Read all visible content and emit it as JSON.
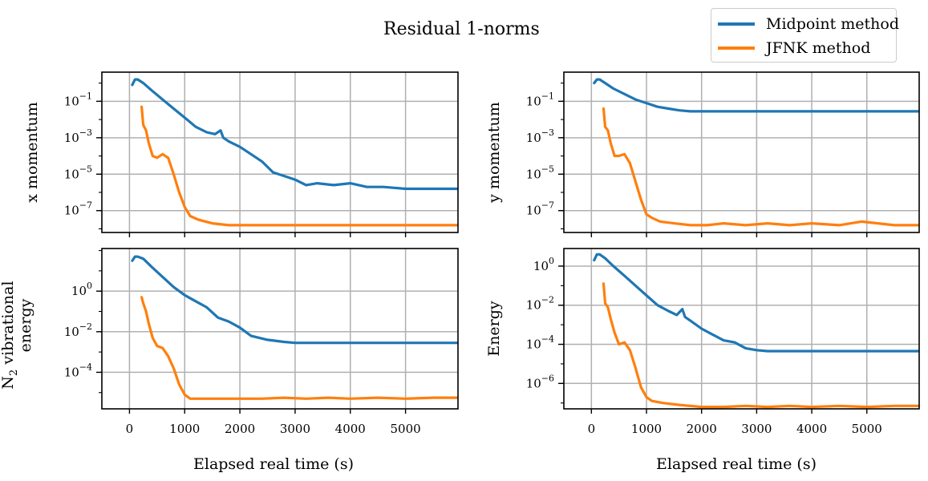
{
  "suptitle": "Residual 1-norms",
  "legend": [
    {
      "label": "Midpoint method",
      "color": "#1f77b4"
    },
    {
      "label": "JFNK method",
      "color": "#ff7f0e"
    }
  ],
  "xlabel": "Elapsed real time (s)",
  "chart_data": [
    {
      "type": "line",
      "panel": "top-left",
      "ylabel": "x momentum",
      "xlim": [
        -500,
        5950
      ],
      "ylim_log10": [
        -8.2,
        0.6
      ],
      "yscale": "log",
      "xticks": [
        0,
        1000,
        2000,
        3000,
        4000,
        5000
      ],
      "xtick_labels_visible": false,
      "yticks_exp": [
        -7,
        -5,
        -3,
        -1
      ],
      "grid": true,
      "series": [
        {
          "name": "Midpoint method",
          "color": "#1f77b4",
          "x": [
            50,
            100,
            150,
            250,
            400,
            600,
            800,
            1000,
            1200,
            1400,
            1550,
            1650,
            1700,
            1800,
            2000,
            2200,
            2400,
            2600,
            2800,
            3000,
            3200,
            3400,
            3700,
            4000,
            4300,
            4600,
            5000,
            5400,
            5950
          ],
          "y_log10": [
            -0.1,
            0.2,
            0.2,
            0.0,
            -0.4,
            -0.9,
            -1.4,
            -1.9,
            -2.4,
            -2.7,
            -2.8,
            -2.6,
            -3.0,
            -3.2,
            -3.5,
            -3.9,
            -4.3,
            -4.9,
            -5.1,
            -5.3,
            -5.6,
            -5.5,
            -5.6,
            -5.5,
            -5.7,
            -5.7,
            -5.8,
            -5.8,
            -5.8
          ]
        },
        {
          "name": "JFNK method",
          "color": "#ff7f0e",
          "x": [
            220,
            250,
            300,
            350,
            420,
            500,
            600,
            700,
            800,
            900,
            1000,
            1100,
            1250,
            1500,
            1800,
            2100,
            2400,
            2800,
            3200,
            3600,
            4000,
            4500,
            5000,
            5500,
            5950
          ],
          "y_log10": [
            -1.3,
            -2.3,
            -2.6,
            -3.3,
            -4.0,
            -4.1,
            -3.9,
            -4.1,
            -5.0,
            -6.0,
            -6.8,
            -7.3,
            -7.5,
            -7.7,
            -7.8,
            -7.8,
            -7.8,
            -7.8,
            -7.8,
            -7.8,
            -7.8,
            -7.8,
            -7.8,
            -7.8,
            -7.8
          ]
        }
      ]
    },
    {
      "type": "line",
      "panel": "top-right",
      "ylabel": "y momentum",
      "xlim": [
        -500,
        5950
      ],
      "ylim_log10": [
        -8.2,
        0.6
      ],
      "yscale": "log",
      "xticks": [
        0,
        1000,
        2000,
        3000,
        4000,
        5000
      ],
      "xtick_labels_visible": false,
      "yticks_exp": [
        -7,
        -5,
        -3,
        -1
      ],
      "grid": true,
      "series": [
        {
          "name": "Midpoint method",
          "color": "#1f77b4",
          "x": [
            50,
            100,
            150,
            250,
            400,
            600,
            800,
            1000,
            1200,
            1400,
            1600,
            1800,
            2000,
            2500,
            3000,
            4000,
            5000,
            5950
          ],
          "y_log10": [
            0.0,
            0.2,
            0.2,
            0.0,
            -0.3,
            -0.6,
            -0.9,
            -1.1,
            -1.3,
            -1.4,
            -1.5,
            -1.55,
            -1.55,
            -1.55,
            -1.55,
            -1.55,
            -1.55,
            -1.55
          ]
        },
        {
          "name": "JFNK method",
          "color": "#ff7f0e",
          "x": [
            220,
            250,
            300,
            350,
            420,
            500,
            600,
            700,
            800,
            900,
            1000,
            1100,
            1250,
            1500,
            1800,
            2100,
            2400,
            2800,
            3200,
            3600,
            4000,
            4500,
            4900,
            5500,
            5950
          ],
          "y_log10": [
            -1.4,
            -2.4,
            -2.6,
            -3.3,
            -4.0,
            -4.0,
            -3.9,
            -4.4,
            -5.4,
            -6.4,
            -7.2,
            -7.4,
            -7.6,
            -7.7,
            -7.8,
            -7.8,
            -7.7,
            -7.8,
            -7.7,
            -7.8,
            -7.7,
            -7.8,
            -7.6,
            -7.8,
            -7.8
          ]
        }
      ]
    },
    {
      "type": "line",
      "panel": "bottom-left",
      "ylabel": "N2 vibrational energy",
      "ylabel_lines": [
        "N",
        "2",
        " vibrational",
        "energy"
      ],
      "xlim": [
        -500,
        5950
      ],
      "ylim_log10": [
        -5.8,
        2.1
      ],
      "yscale": "log",
      "xticks": [
        0,
        1000,
        2000,
        3000,
        4000,
        5000
      ],
      "xtick_labels": [
        "0",
        "1000",
        "2000",
        "3000",
        "4000",
        "5000"
      ],
      "yticks_exp": [
        -4,
        -2,
        0
      ],
      "grid": true,
      "series": [
        {
          "name": "Midpoint method",
          "color": "#1f77b4",
          "x": [
            50,
            100,
            150,
            250,
            400,
            600,
            800,
            1000,
            1200,
            1400,
            1600,
            1800,
            2000,
            2200,
            2500,
            2800,
            3000,
            3500,
            4000,
            5000,
            5950
          ],
          "y_log10": [
            1.5,
            1.7,
            1.7,
            1.6,
            1.2,
            0.7,
            0.2,
            -0.2,
            -0.5,
            -0.8,
            -1.3,
            -1.5,
            -1.8,
            -2.2,
            -2.4,
            -2.5,
            -2.55,
            -2.55,
            -2.55,
            -2.55,
            -2.55
          ]
        },
        {
          "name": "JFNK method",
          "color": "#ff7f0e",
          "x": [
            220,
            250,
            300,
            350,
            420,
            500,
            600,
            700,
            800,
            900,
            1000,
            1100,
            1300,
            1600,
            2000,
            2400,
            2800,
            3200,
            3600,
            4000,
            4500,
            5000,
            5500,
            5950
          ],
          "y_log10": [
            -0.3,
            -0.6,
            -1.0,
            -1.6,
            -2.3,
            -2.7,
            -2.8,
            -3.2,
            -3.8,
            -4.6,
            -5.1,
            -5.3,
            -5.3,
            -5.3,
            -5.3,
            -5.3,
            -5.25,
            -5.3,
            -5.25,
            -5.3,
            -5.25,
            -5.3,
            -5.25,
            -5.25
          ]
        }
      ]
    },
    {
      "type": "line",
      "panel": "bottom-right",
      "ylabel": "Energy",
      "xlim": [
        -500,
        5950
      ],
      "ylim_log10": [
        -7.3,
        0.9
      ],
      "yscale": "log",
      "xticks": [
        0,
        1000,
        2000,
        3000,
        4000,
        5000
      ],
      "xtick_labels": [
        "0",
        "1000",
        "2000",
        "3000",
        "4000",
        "5000"
      ],
      "yticks_exp": [
        -6,
        -4,
        -2,
        0
      ],
      "grid": true,
      "series": [
        {
          "name": "Midpoint method",
          "color": "#1f77b4",
          "x": [
            50,
            100,
            150,
            250,
            400,
            600,
            800,
            1000,
            1200,
            1400,
            1550,
            1650,
            1700,
            1800,
            2000,
            2200,
            2400,
            2600,
            2800,
            3000,
            3200,
            3500,
            4000,
            5000,
            5950
          ],
          "y_log10": [
            0.3,
            0.6,
            0.6,
            0.4,
            0.0,
            -0.5,
            -1.0,
            -1.5,
            -2.0,
            -2.3,
            -2.5,
            -2.2,
            -2.6,
            -2.8,
            -3.2,
            -3.5,
            -3.8,
            -3.9,
            -4.2,
            -4.3,
            -4.35,
            -4.35,
            -4.35,
            -4.35,
            -4.35
          ]
        },
        {
          "name": "JFNK method",
          "color": "#ff7f0e",
          "x": [
            220,
            250,
            300,
            350,
            420,
            500,
            600,
            700,
            800,
            900,
            1000,
            1100,
            1300,
            1600,
            2000,
            2400,
            2800,
            3200,
            3600,
            4000,
            4500,
            5000,
            5500,
            5950
          ],
          "y_log10": [
            -0.9,
            -1.9,
            -2.1,
            -2.7,
            -3.4,
            -4.0,
            -3.9,
            -4.3,
            -5.2,
            -6.2,
            -6.7,
            -6.9,
            -7.0,
            -7.1,
            -7.2,
            -7.2,
            -7.15,
            -7.2,
            -7.15,
            -7.2,
            -7.15,
            -7.2,
            -7.15,
            -7.15
          ]
        }
      ]
    }
  ]
}
